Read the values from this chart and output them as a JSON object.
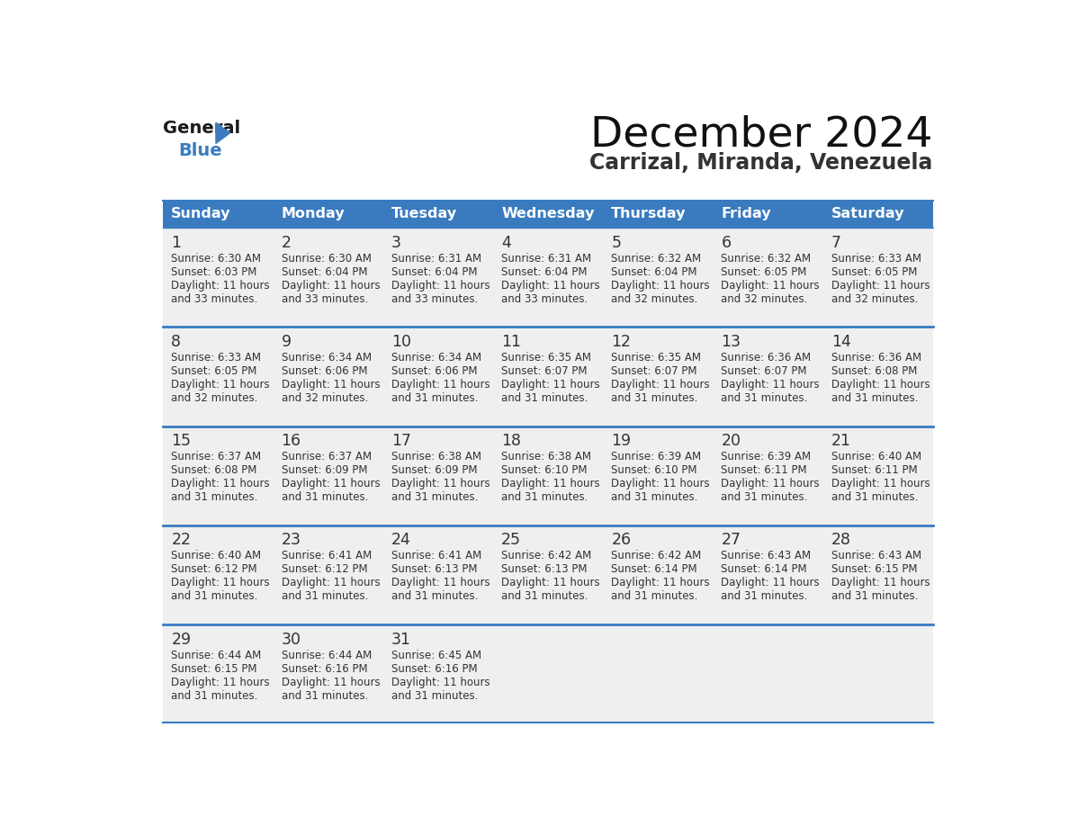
{
  "title": "December 2024",
  "subtitle": "Carrizal, Miranda, Venezuela",
  "header_color": "#3a7bbf",
  "header_text_color": "#ffffff",
  "bg_color": "#ffffff",
  "cell_bg": "#efefef",
  "row_line_color": "#3a7bbf",
  "text_color": "#333333",
  "days_of_week": [
    "Sunday",
    "Monday",
    "Tuesday",
    "Wednesday",
    "Thursday",
    "Friday",
    "Saturday"
  ],
  "weeks": [
    [
      {
        "day": 1,
        "sunrise": "6:30 AM",
        "sunset": "6:03 PM",
        "daylight": "11 hours and 33 minutes."
      },
      {
        "day": 2,
        "sunrise": "6:30 AM",
        "sunset": "6:04 PM",
        "daylight": "11 hours and 33 minutes."
      },
      {
        "day": 3,
        "sunrise": "6:31 AM",
        "sunset": "6:04 PM",
        "daylight": "11 hours and 33 minutes."
      },
      {
        "day": 4,
        "sunrise": "6:31 AM",
        "sunset": "6:04 PM",
        "daylight": "11 hours and 33 minutes."
      },
      {
        "day": 5,
        "sunrise": "6:32 AM",
        "sunset": "6:04 PM",
        "daylight": "11 hours and 32 minutes."
      },
      {
        "day": 6,
        "sunrise": "6:32 AM",
        "sunset": "6:05 PM",
        "daylight": "11 hours and 32 minutes."
      },
      {
        "day": 7,
        "sunrise": "6:33 AM",
        "sunset": "6:05 PM",
        "daylight": "11 hours and 32 minutes."
      }
    ],
    [
      {
        "day": 8,
        "sunrise": "6:33 AM",
        "sunset": "6:05 PM",
        "daylight": "11 hours and 32 minutes."
      },
      {
        "day": 9,
        "sunrise": "6:34 AM",
        "sunset": "6:06 PM",
        "daylight": "11 hours and 32 minutes."
      },
      {
        "day": 10,
        "sunrise": "6:34 AM",
        "sunset": "6:06 PM",
        "daylight": "11 hours and 31 minutes."
      },
      {
        "day": 11,
        "sunrise": "6:35 AM",
        "sunset": "6:07 PM",
        "daylight": "11 hours and 31 minutes."
      },
      {
        "day": 12,
        "sunrise": "6:35 AM",
        "sunset": "6:07 PM",
        "daylight": "11 hours and 31 minutes."
      },
      {
        "day": 13,
        "sunrise": "6:36 AM",
        "sunset": "6:07 PM",
        "daylight": "11 hours and 31 minutes."
      },
      {
        "day": 14,
        "sunrise": "6:36 AM",
        "sunset": "6:08 PM",
        "daylight": "11 hours and 31 minutes."
      }
    ],
    [
      {
        "day": 15,
        "sunrise": "6:37 AM",
        "sunset": "6:08 PM",
        "daylight": "11 hours and 31 minutes."
      },
      {
        "day": 16,
        "sunrise": "6:37 AM",
        "sunset": "6:09 PM",
        "daylight": "11 hours and 31 minutes."
      },
      {
        "day": 17,
        "sunrise": "6:38 AM",
        "sunset": "6:09 PM",
        "daylight": "11 hours and 31 minutes."
      },
      {
        "day": 18,
        "sunrise": "6:38 AM",
        "sunset": "6:10 PM",
        "daylight": "11 hours and 31 minutes."
      },
      {
        "day": 19,
        "sunrise": "6:39 AM",
        "sunset": "6:10 PM",
        "daylight": "11 hours and 31 minutes."
      },
      {
        "day": 20,
        "sunrise": "6:39 AM",
        "sunset": "6:11 PM",
        "daylight": "11 hours and 31 minutes."
      },
      {
        "day": 21,
        "sunrise": "6:40 AM",
        "sunset": "6:11 PM",
        "daylight": "11 hours and 31 minutes."
      }
    ],
    [
      {
        "day": 22,
        "sunrise": "6:40 AM",
        "sunset": "6:12 PM",
        "daylight": "11 hours and 31 minutes."
      },
      {
        "day": 23,
        "sunrise": "6:41 AM",
        "sunset": "6:12 PM",
        "daylight": "11 hours and 31 minutes."
      },
      {
        "day": 24,
        "sunrise": "6:41 AM",
        "sunset": "6:13 PM",
        "daylight": "11 hours and 31 minutes."
      },
      {
        "day": 25,
        "sunrise": "6:42 AM",
        "sunset": "6:13 PM",
        "daylight": "11 hours and 31 minutes."
      },
      {
        "day": 26,
        "sunrise": "6:42 AM",
        "sunset": "6:14 PM",
        "daylight": "11 hours and 31 minutes."
      },
      {
        "day": 27,
        "sunrise": "6:43 AM",
        "sunset": "6:14 PM",
        "daylight": "11 hours and 31 minutes."
      },
      {
        "day": 28,
        "sunrise": "6:43 AM",
        "sunset": "6:15 PM",
        "daylight": "11 hours and 31 minutes."
      }
    ],
    [
      {
        "day": 29,
        "sunrise": "6:44 AM",
        "sunset": "6:15 PM",
        "daylight": "11 hours and 31 minutes."
      },
      {
        "day": 30,
        "sunrise": "6:44 AM",
        "sunset": "6:16 PM",
        "daylight": "11 hours and 31 minutes."
      },
      {
        "day": 31,
        "sunrise": "6:45 AM",
        "sunset": "6:16 PM",
        "daylight": "11 hours and 31 minutes."
      },
      null,
      null,
      null,
      null
    ]
  ],
  "logo_text_general": "General",
  "logo_text_blue": "Blue",
  "logo_triangle_color": "#3a7bbf"
}
